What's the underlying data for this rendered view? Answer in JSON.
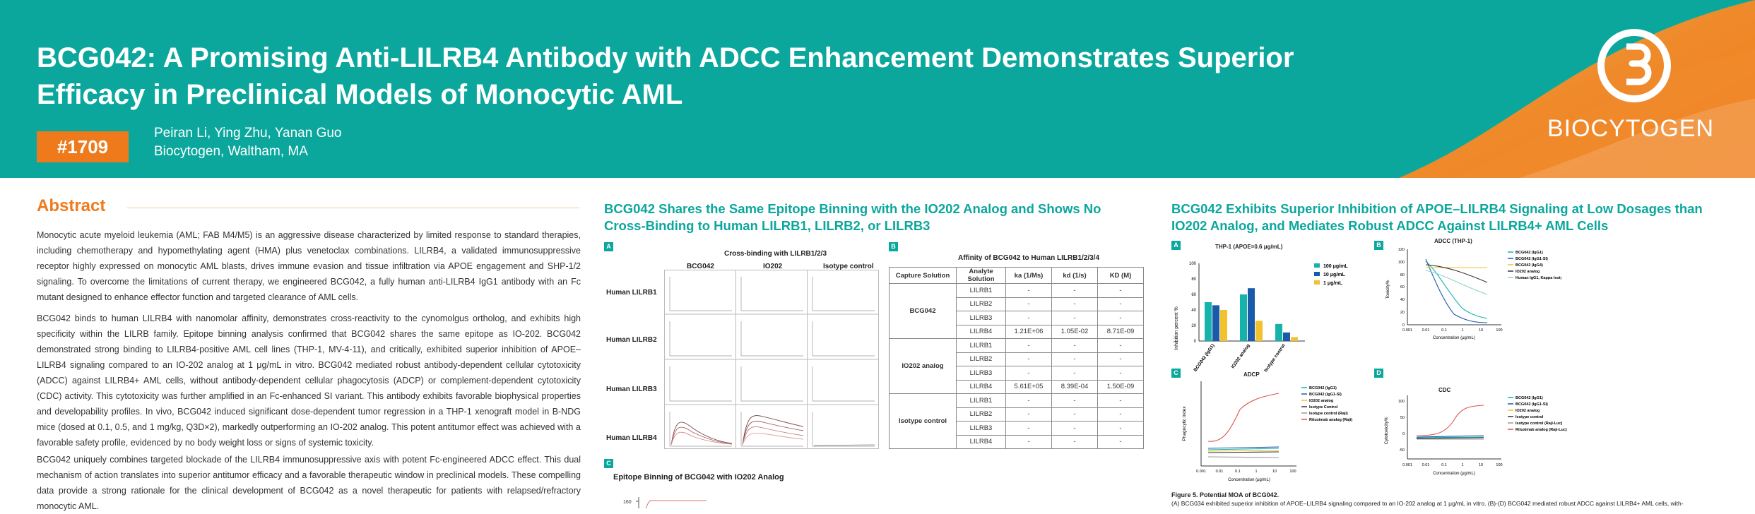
{
  "header": {
    "title_line1": "BCG042: A Promising Anti-LILRB4 Antibody with ADCC Enhancement Demonstrates Superior",
    "title_line2": "Efficacy in Preclinical Models of Monocytic AML",
    "poster_number": "#1709",
    "authors": "Peiran Li, Ying Zhu, Yanan Guo",
    "affiliation": "Biocytogen, Waltham, MA",
    "logo_text": "BIOCYTOGEN"
  },
  "abstract": {
    "heading": "Abstract",
    "p1": "Monocytic acute myeloid leukemia (AML; FAB M4/M5) is an aggressive disease characterized by limited response to standard therapies, including chemotherapy and hypomethylating agent (HMA) plus venetoclax combinations. LILRB4, a validated immunosuppressive receptor highly expressed on monocytic AML blasts, drives immune evasion and tissue infiltration via APOE engagement and SHP-1/2 signaling. To overcome the limitations of current therapy, we engineered BCG042, a fully human anti-LILRB4 IgG1 antibody with an Fc mutant designed to enhance effector function and targeted clearance of AML cells.",
    "p2": "BCG042 binds to human LILRB4 with nanomolar affinity, demonstrates cross-reactivity to the cynomolgus ortholog, and exhibits high specificity within the LILRB family. Epitope binning analysis confirmed that BCG042 shares the same epitope as IO-202. BCG042 demonstrated strong binding to LILRB4-positive AML cell lines (THP-1, MV-4-11), and critically, exhibited superior inhibition of APOE–LILRB4 signaling compared to an IO-202 analog at 1 μg/mL in vitro. BCG042 mediated robust antibody-dependent cellular cytotoxicity (ADCC) against LILRB4+ AML cells, without antibody-dependent cellular phagocytosis (ADCP) or complement-dependent cytotoxicity (CDC) activity. This cytotoxicity was further amplified in an Fc-enhanced SI variant. This antibody exhibits favorable biophysical properties and developability profiles. In vivo, BCG042 induced significant dose-dependent tumor regression in a THP-1 xenograft model in B-NDG mice (dosed at 0.1, 0.5, and 1 mg/kg, Q3D×2), markedly outperforming an IO-202 analog. This potent antitumor effect was achieved with a favorable safety profile, evidenced by no body weight loss or signs of systemic toxicity.",
    "p3": "BCG042 uniquely combines targeted blockade of the LILRB4 immunosuppressive axis with potent Fc-engineered ADCC effect. This dual mechanism of action translates into superior antitumor efficacy and a favorable therapeutic window in preclinical models. These compelling data provide a strong rationale for the clinical development of BCG042 as a novel therapeutic for patients with relapsed/refractory monocytic AML."
  },
  "col2": {
    "heading_l1": "BCG042 Shares the Same Epitope Binning with the IO202 Analog and Shows No",
    "heading_l2": "Cross-Binding to Human LILRB1, LILRB2, or LILRB3",
    "panel_a": {
      "label": "A",
      "title": "Cross-binding with LILRB1/2/3",
      "cols": [
        "BCG042",
        "IO202",
        "Isotype control"
      ],
      "rows": [
        "Human LILRB1",
        "Human LILRB2",
        "Human LILRB3",
        "Human LILRB4"
      ]
    },
    "panel_b": {
      "label": "B",
      "title": "Affinity of BCG042 to Human LILRB1/2/3/4",
      "headers": [
        "Capture Solution",
        "Analyte Solution",
        "ka (1/Ms)",
        "kd (1/s)",
        "KD (M)"
      ],
      "groups": [
        {
          "name": "BCG042",
          "rows": [
            [
              "LILRB1",
              "-",
              "-",
              "-"
            ],
            [
              "LILRB2",
              "-",
              "-",
              "-"
            ],
            [
              "LILRB3",
              "-",
              "-",
              "-"
            ],
            [
              "LILRB4",
              "1.21E+06",
              "1.05E-02",
              "8.71E-09"
            ]
          ]
        },
        {
          "name": "IO202 analog",
          "rows": [
            [
              "LILRB1",
              "-",
              "-",
              "-"
            ],
            [
              "LILRB2",
              "-",
              "-",
              "-"
            ],
            [
              "LILRB3",
              "-",
              "-",
              "-"
            ],
            [
              "LILRB4",
              "5.61E+05",
              "8.39E-04",
              "1.50E-09"
            ]
          ]
        },
        {
          "name": "Isotype control",
          "rows": [
            [
              "LILRB1",
              "-",
              "-",
              "-"
            ],
            [
              "LILRB2",
              "-",
              "-",
              "-"
            ],
            [
              "LILRB3",
              "-",
              "-",
              "-"
            ],
            [
              "LILRB4",
              "-",
              "-",
              "-"
            ]
          ]
        }
      ]
    },
    "panel_c": {
      "label": "C",
      "title": "Epitope Binning of BCG042 with IO202 Analog",
      "ytick": "160"
    }
  },
  "col3": {
    "heading_l1": "BCG042 Exhibits Superior Inhibition of APOE–LILRB4 Signaling at Low Dosages than",
    "heading_l2": "IO202 Analog, and Mediates Robust ADCC Against LILRB4+ AML Cells",
    "panel_a": {
      "label": "A",
      "title": "THP-1 (APOE=0.6 μg/mL)",
      "ylabel": "Inhibition percent %",
      "yticks": [
        "100",
        "80",
        "60",
        "40",
        "20",
        "0"
      ],
      "legend": [
        "100 μg/mL",
        "10 μg/mL",
        "1 μg/mL"
      ],
      "legend_colors": [
        "#16b3ad",
        "#1a5aa8",
        "#f2c12e"
      ]
    },
    "panel_b": {
      "label": "B",
      "title": "ADCC (THP-1)",
      "ylabel": "Toxicity%",
      "xlabel": "Concentration (μg/mL)",
      "yticks": [
        "120",
        "100",
        "80",
        "60",
        "40",
        "20",
        "0"
      ],
      "xticks": [
        "0.001",
        "0.01",
        "0.1",
        "1",
        "10",
        "100"
      ],
      "legend": [
        "BCG042 (IgG1)",
        "BCG042 (IgG1-SI)",
        "BCG042 (IgG4)",
        "IO202 analog",
        "Human IgG1, Kappa Isotype Control"
      ]
    },
    "panel_c": {
      "label": "C",
      "title": "ADCP",
      "ylabel": "Phagocytic index",
      "xlabel": "Concentration (μg/mL)",
      "xticks": [
        "0.001",
        "0.01",
        "0.1",
        "1",
        "10",
        "100"
      ],
      "legend": [
        "BCG042 (IgG1)",
        "BCG042 (IgG1-SI)",
        "IO202 analog",
        "Isotype Control",
        "Isotype control (Raji)",
        "Rituximab analog (Raji)"
      ]
    },
    "panel_d": {
      "label": "D",
      "title": "CDC",
      "ylabel": "Cytotoxicity%",
      "xlabel": "Concentration (μg/mL)",
      "yticks": [
        "100",
        "50",
        "0",
        "-50"
      ],
      "xticks": [
        "0.001",
        "0.01",
        "0.1",
        "1",
        "10",
        "100"
      ],
      "legend": [
        "BCG042 (IgG1)",
        "BCG042 (IgG1-SI)",
        "IO202 analog",
        "Isotype control",
        "Isotype control (Raji-Luc)",
        "Rituximab analog (Raji-Luc)"
      ]
    },
    "caption_title": "Figure 5. Potential MOA of BCG042.",
    "caption": "(A) BCG034 exhibited superior inhibition of APOE–LILRB4 signaling compared to an IO-202 analog at 1 μg/mL in vitro. (B)-(D) BCG042 mediated robust ADCC against LILRB4+ AML cells, with-"
  },
  "chart_data": {
    "type": "bar",
    "title": "THP-1 (APOE=0.6 μg/mL)",
    "categories": [
      "BCG042 (IgG1)",
      "IO202 analog",
      "Isotype control"
    ],
    "series": [
      {
        "name": "100 μg/mL",
        "values": [
          50,
          60,
          22
        ]
      },
      {
        "name": "10 μg/mL",
        "values": [
          46,
          68,
          11
        ]
      },
      {
        "name": "1 μg/mL",
        "values": [
          40,
          26,
          5
        ]
      }
    ],
    "ylabel": "Inhibition percent %",
    "ylim": [
      0,
      100
    ]
  }
}
